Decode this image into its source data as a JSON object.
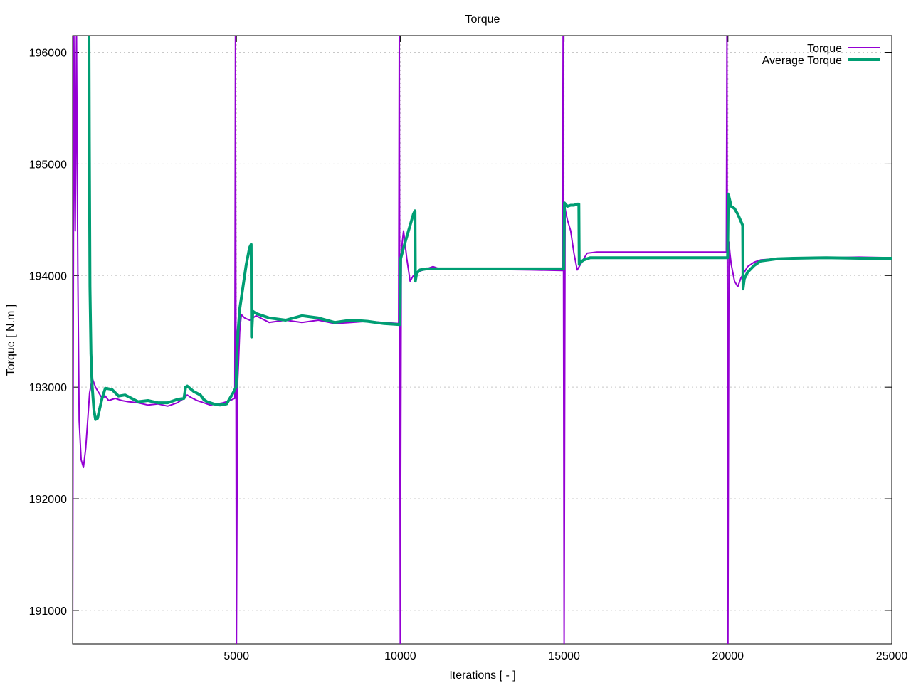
{
  "chart_data": {
    "type": "line",
    "title": "Torque",
    "xlabel": "Iterations [ - ]",
    "ylabel": "Torque [ N.m ]",
    "xlim": [
      0,
      25000
    ],
    "ylim": [
      190700,
      196150
    ],
    "grid": true,
    "legend_position": "top-right",
    "x_ticks": [
      5000,
      10000,
      15000,
      20000,
      25000
    ],
    "y_ticks": [
      191000,
      192000,
      193000,
      194000,
      195000,
      196000
    ],
    "series": [
      {
        "name": "Torque",
        "color": "#9400d3",
        "x": [
          0,
          40,
          80,
          120,
          160,
          200,
          260,
          330,
          400,
          460,
          520,
          600,
          700,
          800,
          900,
          1000,
          1100,
          1300,
          1500,
          1700,
          2000,
          2300,
          2600,
          2900,
          3200,
          3400,
          3500,
          3600,
          3800,
          4000,
          4200,
          4400,
          4600,
          4800,
          4950,
          4970,
          5000,
          5030,
          5060,
          5100,
          5150,
          5250,
          5400,
          5600,
          6000,
          6500,
          7000,
          7500,
          8000,
          8500,
          9000,
          9500,
          9950,
          9970,
          10000,
          10030,
          10060,
          10100,
          10200,
          10300,
          10400,
          10600,
          10800,
          11000,
          11200,
          11500,
          12000,
          13000,
          14000,
          14950,
          14970,
          15000,
          15030,
          15060,
          15100,
          15200,
          15300,
          15400,
          15500,
          15700,
          16000,
          17000,
          18000,
          19000,
          19950,
          19970,
          20000,
          20030,
          20060,
          20100,
          20200,
          20300,
          20400,
          20600,
          20800,
          21000,
          21500,
          22000,
          23000,
          24000,
          25000
        ],
        "y": [
          190700,
          196150,
          194400,
          196150,
          194000,
          192700,
          192350,
          192280,
          192450,
          192700,
          192950,
          193080,
          193000,
          192950,
          192900,
          192920,
          192880,
          192900,
          192880,
          192870,
          192860,
          192840,
          192850,
          192830,
          192860,
          192900,
          192930,
          192910,
          192880,
          192860,
          192840,
          192850,
          192860,
          192880,
          192900,
          196150,
          190700,
          193000,
          193200,
          193500,
          193650,
          193620,
          193600,
          193640,
          193580,
          193600,
          193580,
          193600,
          193570,
          193580,
          193590,
          193580,
          193570,
          196150,
          190700,
          194150,
          194300,
          194400,
          194150,
          193950,
          194000,
          194040,
          194060,
          194080,
          194060,
          194060,
          194060,
          194055,
          194050,
          194045,
          196150,
          190700,
          194600,
          194550,
          194500,
          194400,
          194200,
          194050,
          194100,
          194200,
          194210,
          194210,
          194210,
          194210,
          194210,
          196150,
          190700,
          194300,
          194200,
          194100,
          193950,
          193900,
          193980,
          194080,
          194120,
          194140,
          194150,
          194160,
          194160,
          194165,
          194160
        ]
      },
      {
        "name": "Average Torque",
        "color": "#009e73",
        "x": [
          500,
          510,
          530,
          560,
          600,
          650,
          700,
          760,
          820,
          900,
          1000,
          1200,
          1400,
          1600,
          1800,
          2000,
          2300,
          2600,
          2900,
          3200,
          3400,
          3450,
          3500,
          3700,
          3900,
          4000,
          4100,
          4300,
          4500,
          4700,
          4800,
          4900,
          4990,
          5010,
          5050,
          5100,
          5200,
          5300,
          5400,
          5450,
          5460,
          5500,
          5600,
          5800,
          6000,
          6500,
          7000,
          7500,
          8000,
          8500,
          9000,
          9500,
          9990,
          10010,
          10100,
          10200,
          10300,
          10400,
          10450,
          10460,
          10500,
          10600,
          10800,
          11000,
          11500,
          12000,
          13000,
          14000,
          14990,
          15010,
          15100,
          15200,
          15300,
          15400,
          15450,
          15460,
          15500,
          15600,
          15800,
          16000,
          17000,
          18000,
          19000,
          19990,
          20010,
          20100,
          20200,
          20300,
          20450,
          20460,
          20500,
          20600,
          20800,
          21000,
          21500,
          22000,
          23000,
          24000,
          25000
        ],
        "y": [
          196150,
          195200,
          193900,
          193300,
          193000,
          192800,
          192710,
          192720,
          192800,
          192900,
          192990,
          192980,
          192920,
          192930,
          192900,
          192870,
          192880,
          192860,
          192860,
          192890,
          192900,
          193000,
          193010,
          192960,
          192930,
          192890,
          192870,
          192850,
          192840,
          192850,
          192900,
          192950,
          193000,
          193300,
          193500,
          193700,
          193900,
          194100,
          194250,
          194280,
          193450,
          193680,
          193660,
          193640,
          193620,
          193600,
          193640,
          193620,
          193580,
          193600,
          193590,
          193570,
          193560,
          194150,
          194250,
          194350,
          194450,
          194550,
          194580,
          193950,
          194020,
          194050,
          194060,
          194060,
          194060,
          194060,
          194060,
          194060,
          194060,
          194650,
          194620,
          194630,
          194630,
          194640,
          194640,
          194100,
          194120,
          194140,
          194160,
          194160,
          194160,
          194160,
          194160,
          194160,
          194730,
          194620,
          194600,
          194550,
          194450,
          193880,
          193970,
          194030,
          194090,
          194130,
          194150,
          194155,
          194160,
          194155,
          194155
        ]
      }
    ]
  }
}
